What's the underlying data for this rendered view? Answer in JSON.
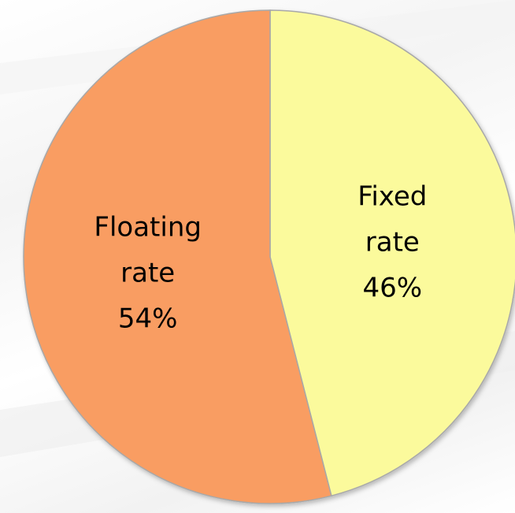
{
  "chart_data": {
    "type": "pie",
    "title": "",
    "categories": [
      "Floating rate",
      "Fixed rate"
    ],
    "values": [
      54,
      46
    ],
    "labels": [
      [
        "Floating",
        "rate",
        "54%"
      ],
      [
        "Fixed",
        "rate",
        "46%"
      ]
    ],
    "colors": [
      "#f99d62",
      "#fbfa9c"
    ],
    "start_angle_deg": 0,
    "direction": "clockwise",
    "first_slice_drawn": "Fixed rate",
    "legend": "none"
  }
}
